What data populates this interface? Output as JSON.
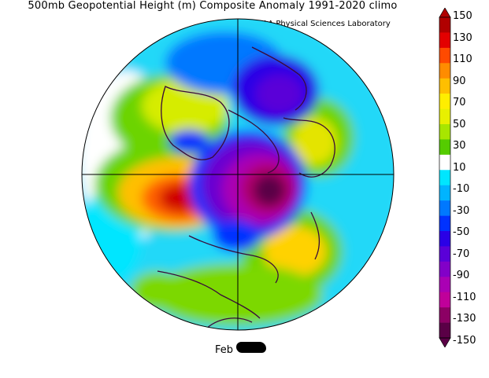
{
  "title": "500mb Geopotential Height (m) Composite Anomaly 1991-2020 climo",
  "credit": "NOAA Physical Sciences Laboratory",
  "date_label": "Feb",
  "colorbar": {
    "labels": [
      "150",
      "130",
      "110",
      "90",
      "70",
      "50",
      "30",
      "10",
      "-10",
      "-30",
      "-50",
      "-70",
      "-90",
      "-110",
      "-130",
      "-150"
    ],
    "colors": [
      "#b00000",
      "#e30000",
      "#ff4a00",
      "#ff8c00",
      "#ffbf00",
      "#ffee00",
      "#e8f000",
      "#a8e600",
      "#55cc00",
      "#ffffff",
      "#00e6ff",
      "#00b4ff",
      "#0078ff",
      "#0032ff",
      "#2a00e6",
      "#5a00d8",
      "#8200c8",
      "#aa00b4",
      "#c0009a",
      "#8c0064",
      "#5a0046"
    ],
    "range": [
      -150,
      150
    ]
  },
  "colors": {
    "land_outline": "#3a0a3a",
    "grid": "#000000"
  }
}
